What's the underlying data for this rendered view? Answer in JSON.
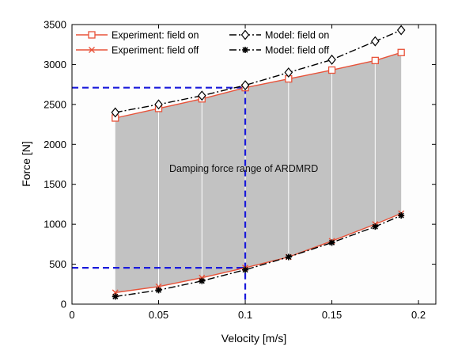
{
  "chart_data": {
    "type": "line",
    "xlabel": "Velocity [m/s]",
    "ylabel": "Force [N]",
    "xlim": [
      0,
      0.21
    ],
    "ylim": [
      0,
      3500
    ],
    "xticks": [
      "0",
      "0.05",
      "0.1",
      "0.15",
      "0.2"
    ],
    "yticks": [
      "0",
      "500",
      "1000",
      "1500",
      "2000",
      "2500",
      "3000",
      "3500"
    ],
    "x": [
      0.025,
      0.05,
      0.075,
      0.1,
      0.125,
      0.15,
      0.175,
      0.19
    ],
    "series": [
      {
        "name": "Experiment: field on",
        "values": [
          2330,
          2450,
          2570,
          2710,
          2820,
          2930,
          3050,
          3150
        ],
        "color": "#e8533a",
        "marker": "square",
        "dash": "solid"
      },
      {
        "name": "Experiment: field off",
        "values": [
          145,
          220,
          330,
          455,
          590,
          790,
          1000,
          1135
        ],
        "color": "#e8533a",
        "marker": "x",
        "dash": "solid"
      },
      {
        "name": "Model: field on",
        "values": [
          2400,
          2500,
          2610,
          2740,
          2900,
          3060,
          3290,
          3430
        ],
        "color": "#000000",
        "marker": "diamond",
        "dash": "dashdot"
      },
      {
        "name": "Model: field off",
        "values": [
          95,
          175,
          290,
          430,
          590,
          770,
          970,
          1110
        ],
        "color": "#000000",
        "marker": "star",
        "dash": "dashdot"
      }
    ],
    "shaded_region": {
      "between": [
        "Experiment: field off",
        "Experiment: field on"
      ],
      "color": "#c2c2c2"
    },
    "reference_lines": {
      "x": 0.1,
      "y_upper": 2710,
      "y_lower": 455,
      "color": "#1a1adb"
    },
    "annotation": "Damping force range of ARDMRD",
    "legend_position": "top",
    "grid": false
  }
}
